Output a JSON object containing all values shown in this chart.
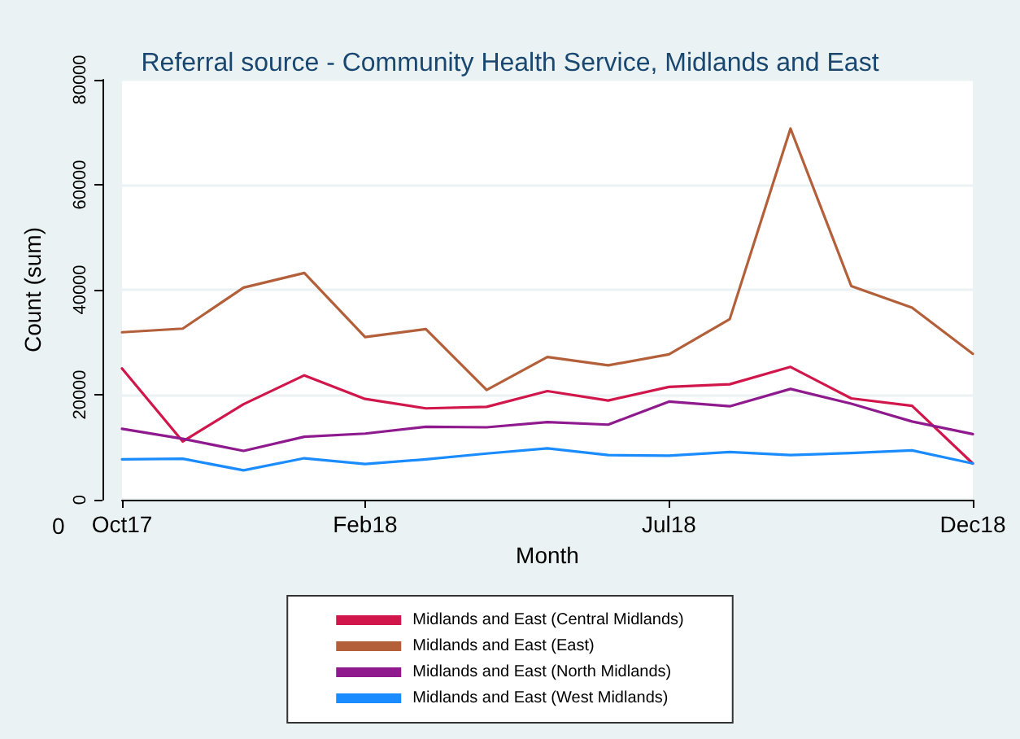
{
  "chart_data": {
    "type": "line",
    "title": "Referral source - Community Health Service, Midlands and East",
    "xlabel": "Month",
    "ylabel": "Count (sum)",
    "categories": [
      "Oct17",
      null,
      null,
      null,
      "Feb18",
      null,
      null,
      null,
      null,
      "Jul18",
      null,
      null,
      null,
      null,
      "Dec18"
    ],
    "series": [
      {
        "name": "Midlands and East (Central Midlands)",
        "color": "#d0164a",
        "values": [
          25000,
          11100,
          18200,
          23700,
          19200,
          17400,
          17700,
          20700,
          18900,
          21500,
          22000,
          25300,
          19300,
          17900,
          6900
        ]
      },
      {
        "name": "Midlands and East (East)",
        "color": "#b3603a",
        "values": [
          31900,
          32600,
          40400,
          43200,
          31000,
          32500,
          20900,
          27200,
          25600,
          27700,
          34400,
          70700,
          40700,
          36600,
          27800
        ]
      },
      {
        "name": "Midlands and East (North Midlands)",
        "color": "#8e1a8e",
        "values": [
          13500,
          11600,
          9300,
          12000,
          12600,
          13900,
          13800,
          14800,
          14300,
          18700,
          17800,
          21100,
          18300,
          14900,
          12500
        ]
      },
      {
        "name": "Midlands and East (West Midlands)",
        "color": "#1a8cff",
        "values": [
          7700,
          7800,
          5600,
          7900,
          6800,
          7700,
          8800,
          9800,
          8500,
          8400,
          9100,
          8500,
          8900,
          9400,
          6900
        ]
      }
    ],
    "annotations": [
      "0"
    ],
    "ylim": [
      0,
      80000
    ],
    "yticks": [
      0,
      20000,
      40000,
      60000,
      80000
    ],
    "grid": "y",
    "legend": "bottom",
    "marker": "none",
    "line_style": "solid"
  }
}
